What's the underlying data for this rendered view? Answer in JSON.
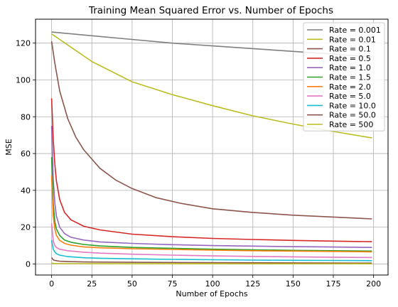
{
  "chart_data": {
    "type": "line",
    "title": "Training Mean Squared Error vs. Number of Epochs",
    "xlabel": "Number of Epochs",
    "ylabel": "MSE",
    "xlim": [
      -10,
      209
    ],
    "ylim": [
      -6,
      133
    ],
    "xticks": [
      0,
      25,
      50,
      75,
      100,
      125,
      150,
      175,
      200
    ],
    "yticks": [
      0,
      20,
      40,
      60,
      80,
      100,
      120
    ],
    "grid": true,
    "legend_position": "top-right",
    "series": [
      {
        "name": "Rate = 0.001",
        "color": "#7f7f7f",
        "x": [
          0,
          25,
          50,
          75,
          100,
          125,
          150,
          175,
          199
        ],
        "y": [
          126,
          124,
          122,
          120,
          118.5,
          117,
          115.5,
          114,
          112.5
        ]
      },
      {
        "name": "Rate = 0.01",
        "color": "#bcbd22",
        "x": [
          0,
          5,
          10,
          25,
          50,
          75,
          100,
          125,
          150,
          175,
          199
        ],
        "y": [
          125,
          122,
          119,
          110,
          99,
          92,
          86,
          80.5,
          76,
          72,
          68.5
        ]
      },
      {
        "name": "Rate = 0.1",
        "color": "#8c564b",
        "x": [
          0,
          2,
          5,
          10,
          15,
          20,
          30,
          40,
          50,
          65,
          80,
          100,
          125,
          150,
          175,
          199
        ],
        "y": [
          121,
          109,
          94,
          79,
          69,
          62,
          52,
          45.5,
          41,
          36,
          33,
          30,
          28,
          26.5,
          25.5,
          24.5
        ]
      },
      {
        "name": "Rate = 0.5",
        "color": "#d62728",
        "x": [
          0,
          1,
          2,
          3,
          5,
          8,
          12,
          20,
          30,
          50,
          75,
          100,
          125,
          150,
          175,
          199
        ],
        "y": [
          90,
          68,
          54,
          45,
          35,
          28,
          24,
          20.5,
          18.5,
          16.2,
          14.8,
          13.9,
          13.3,
          12.8,
          12.4,
          12.1
        ]
      },
      {
        "name": "Rate = 1.0",
        "color": "#9467bd",
        "x": [
          0,
          1,
          2,
          3,
          5,
          8,
          12,
          20,
          30,
          50,
          75,
          100,
          125,
          150,
          175,
          199
        ],
        "y": [
          75,
          46,
          33,
          26,
          20,
          16.5,
          14.5,
          13,
          12,
          11.2,
          10.5,
          10,
          9.7,
          9.4,
          9.2,
          9
        ]
      },
      {
        "name": "Rate = 1.5",
        "color": "#2ca02c",
        "x": [
          0,
          1,
          2,
          3,
          5,
          8,
          12,
          20,
          30,
          50,
          75,
          100,
          125,
          150,
          175,
          199
        ],
        "y": [
          58,
          33,
          23,
          19,
          15.5,
          13,
          11.8,
          10.6,
          9.8,
          9,
          8.5,
          8,
          7.7,
          7.4,
          7.2,
          7
        ]
      },
      {
        "name": "Rate = 2.0",
        "color": "#ff7f0e",
        "x": [
          0,
          1,
          2,
          3,
          5,
          8,
          12,
          20,
          30,
          50,
          75,
          100,
          125,
          150,
          175,
          199
        ],
        "y": [
          48,
          26,
          19,
          15.5,
          12.8,
          11.2,
          10.2,
          9.3,
          8.8,
          8.3,
          7.9,
          7.5,
          7.2,
          7,
          6.8,
          6.6
        ]
      },
      {
        "name": "Rate = 5.0",
        "color": "#e377c2",
        "x": [
          0,
          1,
          2,
          3,
          5,
          10,
          20,
          30,
          50,
          75,
          100,
          125,
          150,
          175,
          199
        ],
        "y": [
          22,
          12.5,
          10,
          9,
          8,
          7.2,
          6.4,
          5.9,
          5.3,
          4.8,
          4.4,
          4.1,
          3.9,
          3.7,
          3.5
        ]
      },
      {
        "name": "Rate = 10.0",
        "color": "#17becf",
        "x": [
          0,
          1,
          2,
          3,
          5,
          10,
          20,
          30,
          50,
          75,
          100,
          125,
          150,
          175,
          199
        ],
        "y": [
          13,
          8,
          6.5,
          5.6,
          4.8,
          4,
          3.4,
          3.1,
          2.8,
          2.5,
          2.3,
          2.1,
          2,
          1.9,
          1.8
        ]
      },
      {
        "name": "Rate = 50.0",
        "color": "#8c564b",
        "x": [
          0,
          1,
          2,
          5,
          10,
          20,
          50,
          100,
          150,
          199
        ],
        "y": [
          3.5,
          2.3,
          1.9,
          1.5,
          1.3,
          1.1,
          0.9,
          0.7,
          0.6,
          0.5
        ]
      },
      {
        "name": "Rate = 500",
        "color": "#bcbd22",
        "x": [
          0,
          1,
          2,
          5,
          10,
          20,
          50,
          100,
          150,
          199
        ],
        "y": [
          0.6,
          0.3,
          0.25,
          0.2,
          0.18,
          0.16,
          0.14,
          0.12,
          0.11,
          0.1
        ]
      }
    ]
  }
}
